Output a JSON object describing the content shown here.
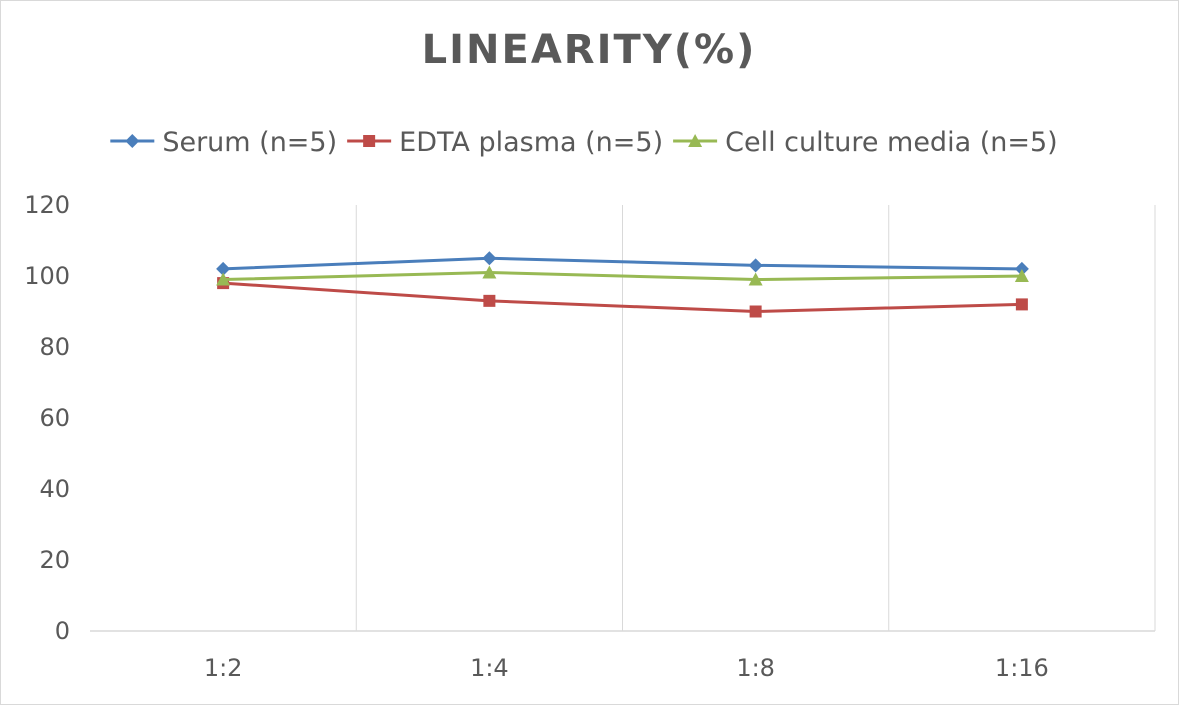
{
  "chart_data": {
    "type": "line",
    "title": "LINEARITY(%)",
    "xlabel": "",
    "ylabel": "",
    "categories": [
      "1:2",
      "1:4",
      "1:8",
      "1:16"
    ],
    "ylim": [
      0,
      120
    ],
    "yticks": [
      0,
      20,
      40,
      60,
      80,
      100,
      120
    ],
    "grid": "vertical",
    "legend": "top",
    "series": [
      {
        "name": "Serum (n=5)",
        "values": [
          102,
          105,
          103,
          102
        ],
        "color": "#4a7ebb",
        "marker": "diamond"
      },
      {
        "name": "EDTA plasma (n=5)",
        "values": [
          98,
          93,
          90,
          92
        ],
        "color": "#be4b48",
        "marker": "square"
      },
      {
        "name": "Cell culture media (n=5)",
        "values": [
          99,
          101,
          99,
          100
        ],
        "color": "#98b954",
        "marker": "triangle"
      }
    ]
  }
}
